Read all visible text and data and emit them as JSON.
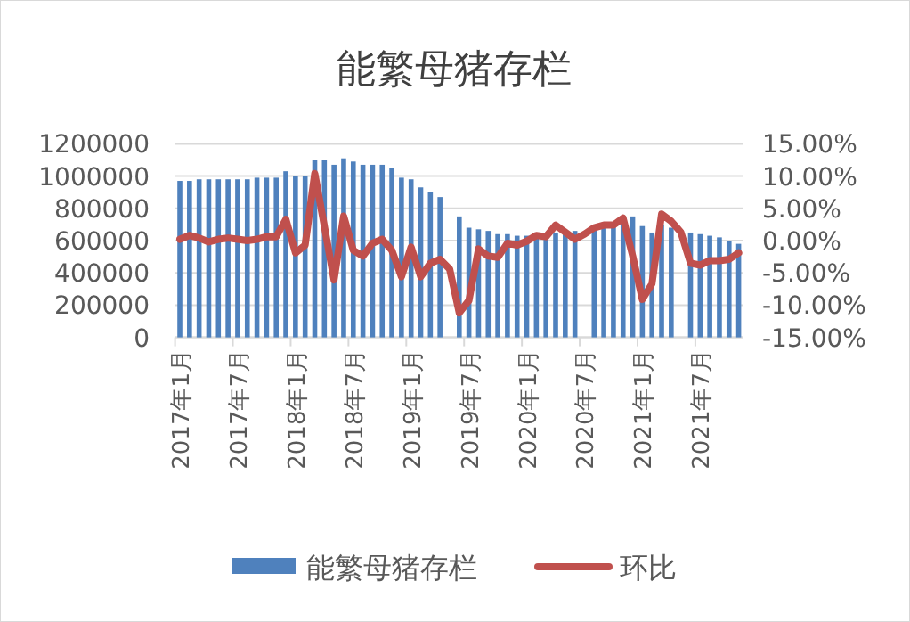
{
  "chart_data": {
    "type": "bar",
    "title": "能繁母猪存栏",
    "categories": [
      "2017年1月",
      null,
      null,
      null,
      null,
      null,
      "2017年7月",
      null,
      null,
      null,
      null,
      null,
      "2018年1月",
      null,
      null,
      null,
      null,
      null,
      "2018年7月",
      null,
      null,
      null,
      null,
      null,
      "2019年1月",
      null,
      null,
      null,
      null,
      null,
      "2019年7月",
      null,
      null,
      null,
      null,
      null,
      "2020年1月",
      null,
      null,
      null,
      null,
      null,
      "2020年7月",
      null,
      null,
      null,
      null,
      null,
      "2021年1月",
      null,
      null,
      null,
      null,
      null,
      "2021年7月",
      null,
      null,
      null,
      null
    ],
    "series": [
      {
        "name": "能繁母猪存栏",
        "color": "#4f81bd",
        "values": [
          970000,
          970000,
          980000,
          980000,
          980000,
          980000,
          980000,
          980000,
          990000,
          990000,
          990000,
          1030000,
          1000000,
          1000000,
          1100000,
          1100000,
          1070000,
          1110000,
          1090000,
          1070000,
          1070000,
          1070000,
          1050000,
          990000,
          980000,
          930000,
          900000,
          870000,
          null,
          750000,
          680000,
          670000,
          660000,
          640000,
          640000,
          630000,
          630000,
          620000,
          610000,
          650000,
          650000,
          660000,
          null,
          680000,
          700000,
          710000,
          720000,
          750000,
          690000,
          650000,
          700000,
          680000,
          null,
          650000,
          640000,
          630000,
          620000,
          600000,
          580000
        ]
      },
      {
        "name": "环比",
        "color": "#c0504d",
        "type": "line",
        "axis": "y2",
        "values": [
          0.2,
          0.8,
          0.4,
          -0.2,
          0.2,
          0.4,
          0.2,
          0.0,
          0.2,
          0.6,
          0.6,
          3.3,
          -1.9,
          -0.7,
          10.4,
          2.2,
          -6.1,
          3.8,
          -1.5,
          -2.4,
          -0.4,
          0.2,
          -1.5,
          -5.6,
          -1.0,
          -5.6,
          -3.5,
          -2.9,
          -4.4,
          -11.2,
          -9.3,
          -1.3,
          -2.4,
          -2.6,
          -0.4,
          -0.7,
          -0.1,
          0.8,
          0.6,
          2.4,
          1.3,
          0.2,
          1.0,
          2.0,
          2.4,
          2.4,
          3.5,
          -2.4,
          -9.1,
          -6.7,
          4.1,
          3.0,
          1.3,
          -3.5,
          -3.8,
          -3.1,
          -3.1,
          -2.9,
          -1.9
        ]
      }
    ],
    "ylim": [
      0,
      1200000
    ],
    "yticks": [
      0,
      200000,
      400000,
      600000,
      800000,
      1000000,
      1200000
    ],
    "y2lim": [
      -15,
      15
    ],
    "y2ticks": [
      {
        "value": -15,
        "label": "-15.00%"
      },
      {
        "value": -10,
        "label": "-10.00%"
      },
      {
        "value": -5,
        "label": "-5.00%"
      },
      {
        "value": 0,
        "label": "0.00%"
      },
      {
        "value": 5,
        "label": "5.00%"
      },
      {
        "value": 10,
        "label": "10.00%"
      },
      {
        "value": 15,
        "label": "15.00%"
      }
    ],
    "grid": "y",
    "legend": "bottom"
  }
}
